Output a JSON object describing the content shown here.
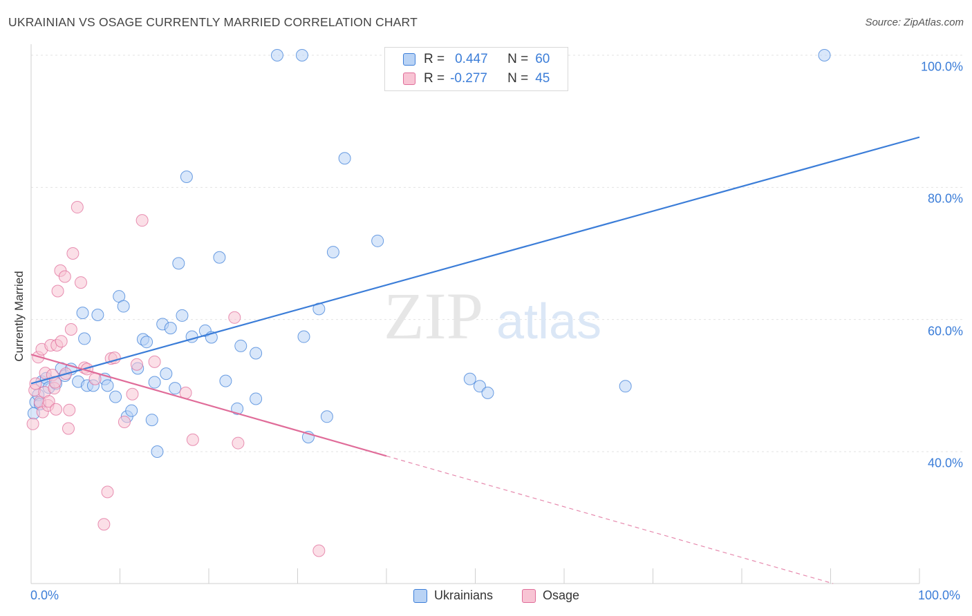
{
  "title": "UKRAINIAN VS OSAGE CURRENTLY MARRIED CORRELATION CHART",
  "source": "Source: ZipAtlas.com",
  "watermark": {
    "zip": "ZIP",
    "atlas": "atlas"
  },
  "legend": {
    "r_label": "R =",
    "n_label": "N =",
    "series1": {
      "r": "0.447",
      "n": "60"
    },
    "series2": {
      "r": "-0.277",
      "n": "45"
    }
  },
  "chart_data": {
    "type": "scatter",
    "title": "UKRAINIAN VS OSAGE CURRENTLY MARRIED CORRELATION CHART",
    "xlabel": "",
    "ylabel": "Currently Married",
    "xlim": [
      0,
      100
    ],
    "ylim": [
      20,
      103
    ],
    "x_tick_labels": [
      "0.0%",
      "100.0%"
    ],
    "y_tick_labels": [
      "40.0%",
      "60.0%",
      "80.0%",
      "100.0%"
    ],
    "y_ticks": [
      40,
      60,
      80,
      100
    ],
    "grid": true,
    "series": [
      {
        "name": "Ukrainians",
        "color": "#3b7dd8",
        "fill": "#b9d3f5",
        "r": 0.447,
        "n": 60,
        "trend": {
          "x0": 0,
          "y0": 50.3,
          "x1": 100,
          "y1": 87.6,
          "dashed_from": null
        },
        "points": [
          [
            0.3,
            45.8
          ],
          [
            0.5,
            47.5
          ],
          [
            0.8,
            48.6
          ],
          [
            1.2,
            50.6
          ],
          [
            1.7,
            51.1
          ],
          [
            2.0,
            49.7
          ],
          [
            2.8,
            50.3
          ],
          [
            3.4,
            52.6
          ],
          [
            3.8,
            51.5
          ],
          [
            4.5,
            52.5
          ],
          [
            5.3,
            50.6
          ],
          [
            5.8,
            61.0
          ],
          [
            6.0,
            57.1
          ],
          [
            6.3,
            50.0
          ],
          [
            7.0,
            50.0
          ],
          [
            7.5,
            60.7
          ],
          [
            8.3,
            51.0
          ],
          [
            8.6,
            50.0
          ],
          [
            9.5,
            48.3
          ],
          [
            9.9,
            63.5
          ],
          [
            10.4,
            62.0
          ],
          [
            10.8,
            45.3
          ],
          [
            11.3,
            46.2
          ],
          [
            12.0,
            52.6
          ],
          [
            12.6,
            57.0
          ],
          [
            13.0,
            56.6
          ],
          [
            13.6,
            44.8
          ],
          [
            13.9,
            50.5
          ],
          [
            14.2,
            40.0
          ],
          [
            14.8,
            59.3
          ],
          [
            15.2,
            51.8
          ],
          [
            15.7,
            58.7
          ],
          [
            16.2,
            49.6
          ],
          [
            16.6,
            68.5
          ],
          [
            17.0,
            60.6
          ],
          [
            17.5,
            81.6
          ],
          [
            18.1,
            57.4
          ],
          [
            19.6,
            58.3
          ],
          [
            20.3,
            57.3
          ],
          [
            21.2,
            69.4
          ],
          [
            21.9,
            50.7
          ],
          [
            23.2,
            46.5
          ],
          [
            23.6,
            56.0
          ],
          [
            25.3,
            48.0
          ],
          [
            25.3,
            54.9
          ],
          [
            27.7,
            100.0
          ],
          [
            30.5,
            100.0
          ],
          [
            30.7,
            57.4
          ],
          [
            31.2,
            42.2
          ],
          [
            32.4,
            61.6
          ],
          [
            33.3,
            45.3
          ],
          [
            34.0,
            70.2
          ],
          [
            35.3,
            84.4
          ],
          [
            39.0,
            71.9
          ],
          [
            49.4,
            51.0
          ],
          [
            50.5,
            49.9
          ],
          [
            51.4,
            48.9
          ],
          [
            66.9,
            49.9
          ],
          [
            89.3,
            100.0
          ],
          [
            1.0,
            47.2
          ]
        ]
      },
      {
        "name": "Osage",
        "color": "#e06c99",
        "fill": "#f8c4d4",
        "r": -0.277,
        "n": 45,
        "trend": {
          "x0": 0,
          "y0": 54.7,
          "x1": 100,
          "y1": 16.3,
          "dashed_from": 40
        },
        "points": [
          [
            0.2,
            44.2
          ],
          [
            0.4,
            49.3
          ],
          [
            0.5,
            50.3
          ],
          [
            0.8,
            54.3
          ],
          [
            1.0,
            47.5
          ],
          [
            1.2,
            55.5
          ],
          [
            1.3,
            46.0
          ],
          [
            1.5,
            49.0
          ],
          [
            1.6,
            51.9
          ],
          [
            1.9,
            47.0
          ],
          [
            2.0,
            47.6
          ],
          [
            2.2,
            56.1
          ],
          [
            2.4,
            51.6
          ],
          [
            2.6,
            49.6
          ],
          [
            2.7,
            50.5
          ],
          [
            2.8,
            46.4
          ],
          [
            2.9,
            56.1
          ],
          [
            3.0,
            64.3
          ],
          [
            3.3,
            67.4
          ],
          [
            3.4,
            56.7
          ],
          [
            3.8,
            66.5
          ],
          [
            3.9,
            51.8
          ],
          [
            4.2,
            43.5
          ],
          [
            4.3,
            46.3
          ],
          [
            4.5,
            58.5
          ],
          [
            4.7,
            70.0
          ],
          [
            5.2,
            77.0
          ],
          [
            5.6,
            65.6
          ],
          [
            6.0,
            52.7
          ],
          [
            6.3,
            52.5
          ],
          [
            7.2,
            51.0
          ],
          [
            8.2,
            29.0
          ],
          [
            8.6,
            33.9
          ],
          [
            9.0,
            54.1
          ],
          [
            9.4,
            54.2
          ],
          [
            10.5,
            44.5
          ],
          [
            11.4,
            48.7
          ],
          [
            11.9,
            53.2
          ],
          [
            12.5,
            75.0
          ],
          [
            13.9,
            53.6
          ],
          [
            17.4,
            48.9
          ],
          [
            18.2,
            41.8
          ],
          [
            22.9,
            60.3
          ],
          [
            23.3,
            41.3
          ],
          [
            32.4,
            25.0
          ]
        ]
      }
    ]
  }
}
